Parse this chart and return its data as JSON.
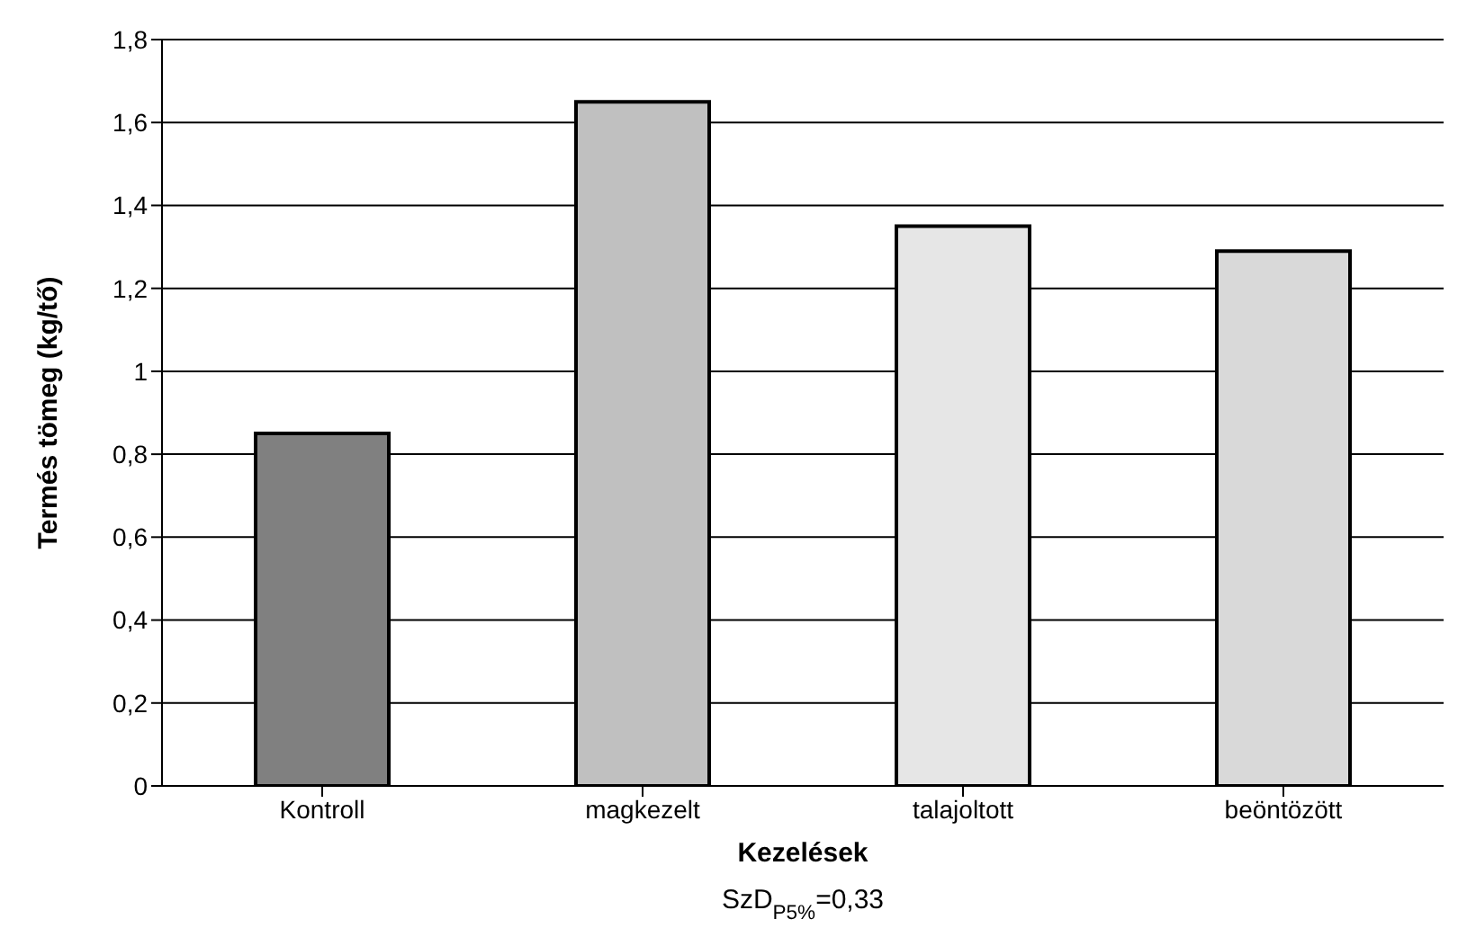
{
  "chart_data": {
    "type": "bar",
    "xlabel": "Kezelések",
    "ylabel": "Termés tömeg (kg/tő)",
    "categories": [
      "Kontroll",
      "magkezelt",
      "talajoltott",
      "beöntözött"
    ],
    "values": [
      0.85,
      1.65,
      1.35,
      1.29
    ],
    "colors": [
      "#808080",
      "#c0c0c0",
      "#e6e6e6",
      "#d9d9d9"
    ],
    "ylim": [
      0,
      1.8
    ],
    "yticks": [
      0,
      {
        "value": 0.2,
        "label": "0,2"
      },
      {
        "value": 0.4,
        "label": "0,4"
      },
      {
        "value": 0.6,
        "label": "0,6"
      },
      {
        "value": 0.8,
        "label": "0,8"
      },
      1,
      {
        "value": 1.2,
        "label": "1,2"
      },
      {
        "value": 1.4,
        "label": "1,4"
      },
      {
        "value": 1.6,
        "label": "1,6"
      },
      {
        "value": 1.8,
        "label": "1,8"
      }
    ],
    "grid": "y",
    "annotations": [
      "SzD$_{P5%}$=0,33"
    ]
  }
}
